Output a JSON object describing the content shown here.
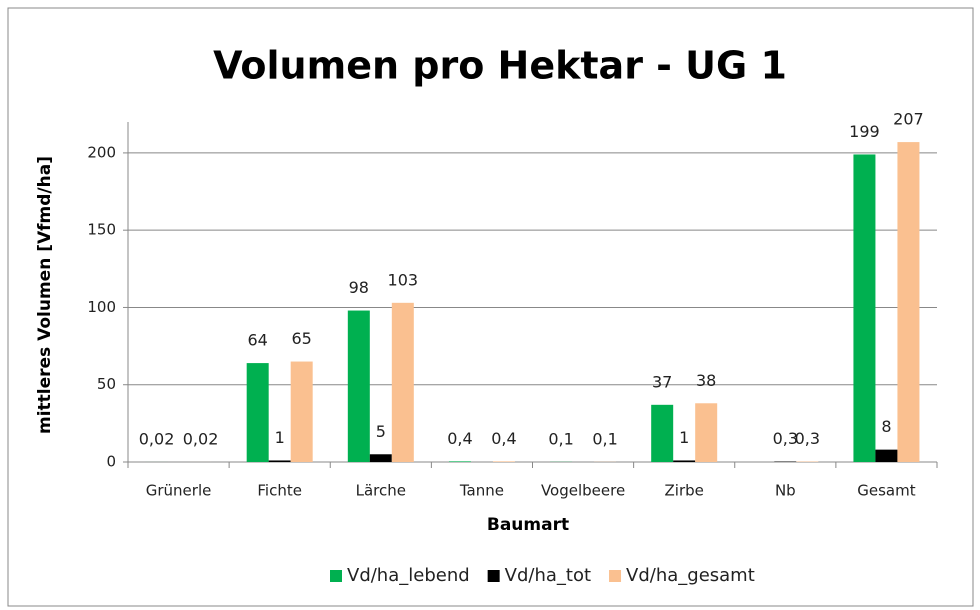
{
  "chart_data": {
    "type": "bar",
    "title": "Volumen pro Hektar - UG 1",
    "xlabel": "Baumart",
    "ylabel": "mittleres Volumen [Vfmd/ha]",
    "categories": [
      "Grünerle",
      "Fichte",
      "Lärche",
      "Tanne",
      "Vogelbeere",
      "Zirbe",
      "Nb",
      "Gesamt"
    ],
    "series": [
      {
        "name": "Vd/ha_lebend",
        "color": "#00b050",
        "values": [
          0.02,
          64,
          98,
          0.4,
          0.1,
          37,
          null,
          199
        ],
        "value_labels": [
          "0,02",
          "64",
          "98",
          "0,4",
          "0,1",
          "37",
          null,
          "199"
        ]
      },
      {
        "name": "Vd/ha_tot",
        "color": "#000000",
        "values": [
          null,
          1,
          5,
          null,
          null,
          1,
          0.3,
          8
        ],
        "value_labels": [
          null,
          "1",
          "5",
          null,
          null,
          "1",
          "0,3",
          "8"
        ]
      },
      {
        "name": "Vd/ha_gesamt",
        "color": "#fac090",
        "values": [
          0.02,
          65,
          103,
          0.4,
          0.1,
          38,
          0.3,
          207
        ],
        "value_labels": [
          "0,02",
          "65",
          "103",
          "0,4",
          "0,1",
          "38",
          "0,3",
          "207"
        ]
      }
    ],
    "ylim": [
      0,
      220
    ],
    "yticks": [
      0,
      50,
      100,
      150,
      200
    ],
    "grid": true,
    "legend": "bottom"
  }
}
